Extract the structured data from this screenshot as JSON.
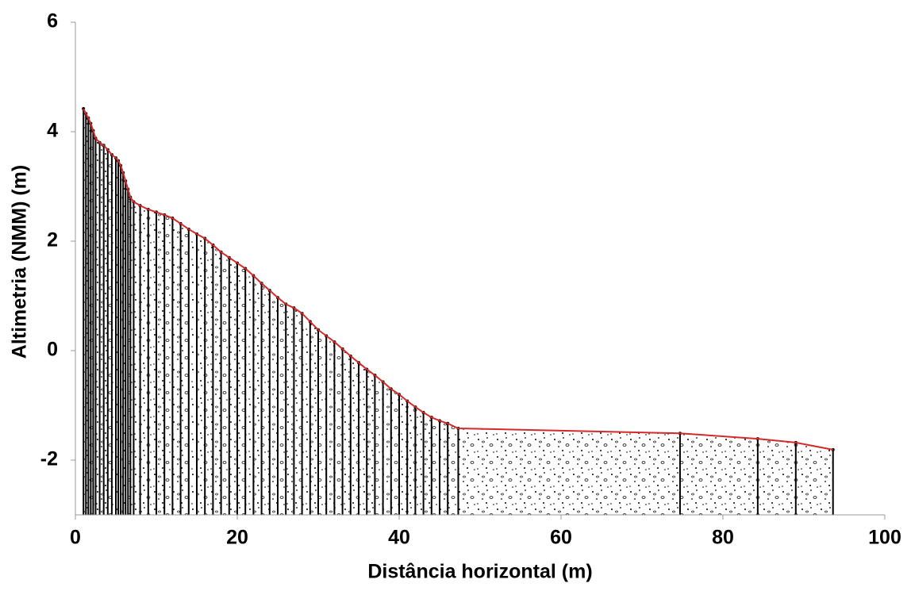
{
  "chart_data": {
    "type": "line",
    "xlabel": "Distância horizontal (m)",
    "ylabel": "Altimetria (NMM) (m)",
    "xlim": [
      0,
      100
    ],
    "xticks": [
      0,
      20,
      40,
      60,
      80,
      100
    ],
    "ylim": [
      -3,
      6
    ],
    "yticks": [
      -2,
      0,
      2,
      4,
      6
    ],
    "line_color": "#d42a2a",
    "marker_color": "#000000",
    "x": [
      1.0,
      1.3,
      1.6,
      1.9,
      2.2,
      2.5,
      3.0,
      3.5,
      4.0,
      4.5,
      5.0,
      5.3,
      5.6,
      5.9,
      6.2,
      6.5,
      6.8,
      7.2,
      8.0,
      9.0,
      10.0,
      11.0,
      12.0,
      13.0,
      14.0,
      15.0,
      16.0,
      17.0,
      18.0,
      19.0,
      20.0,
      21.0,
      22.0,
      23.0,
      24.0,
      25.0,
      26.0,
      27.0,
      28.0,
      29.0,
      30.0,
      31.0,
      32.0,
      33.0,
      34.0,
      35.0,
      36.0,
      37.0,
      38.0,
      39.0,
      40.0,
      41.0,
      42.0,
      43.0,
      44.0,
      45.0,
      46.0,
      47.3,
      74.7,
      84.3,
      89.0,
      93.6
    ],
    "values": [
      4.42,
      4.33,
      4.25,
      4.15,
      4.02,
      3.88,
      3.8,
      3.75,
      3.67,
      3.58,
      3.52,
      3.47,
      3.38,
      3.25,
      3.1,
      2.95,
      2.8,
      2.72,
      2.65,
      2.58,
      2.53,
      2.48,
      2.42,
      2.32,
      2.22,
      2.13,
      2.05,
      1.93,
      1.8,
      1.7,
      1.6,
      1.5,
      1.37,
      1.23,
      1.1,
      0.97,
      0.85,
      0.78,
      0.68,
      0.53,
      0.38,
      0.27,
      0.16,
      0.03,
      -0.1,
      -0.22,
      -0.34,
      -0.45,
      -0.57,
      -0.7,
      -0.8,
      -0.92,
      -1.03,
      -1.13,
      -1.22,
      -1.28,
      -1.33,
      -1.42,
      -1.51,
      -1.61,
      -1.68,
      -1.81
    ]
  }
}
